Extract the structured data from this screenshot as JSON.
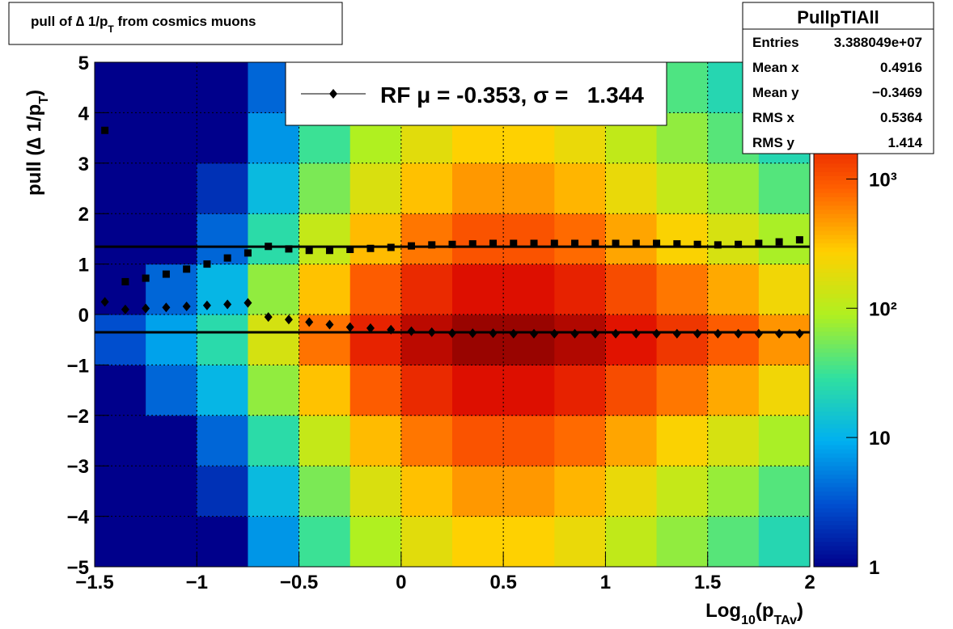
{
  "chart_data": {
    "type": "heatmap",
    "title": [
      "pull of ∆ 1/p",
      "T",
      " from cosmics muons"
    ],
    "x_label": [
      "Log",
      "10",
      "(p",
      "TAv",
      ")"
    ],
    "y_label": [
      "pull (∆ 1/p",
      "T",
      ")"
    ],
    "xlim": [
      -1.5,
      2
    ],
    "ylim": [
      -5,
      5
    ],
    "xticks": [
      {
        "value": -1.5,
        "label": "−1.5"
      },
      {
        "value": -1,
        "label": "−1"
      },
      {
        "value": -0.5,
        "label": "−0.5"
      },
      0,
      0.5,
      1,
      1.5,
      2
    ],
    "yticks": [
      {
        "value": -5,
        "label": "−5"
      },
      {
        "value": -4,
        "label": "−4"
      },
      {
        "value": -3,
        "label": "−3"
      },
      {
        "value": -2,
        "label": "−2"
      },
      {
        "value": -1,
        "label": "−1"
      },
      0,
      1,
      2,
      3,
      4,
      5
    ],
    "grid": true,
    "x_bins": [
      -1.5,
      -1.25,
      -1,
      -0.75,
      -0.5,
      -0.25,
      0,
      0.25,
      0.5,
      0.75,
      1,
      1.25,
      1.5,
      1.75,
      2
    ],
    "y_bins": [
      -5,
      -4,
      -3,
      -2,
      -1,
      0,
      1,
      2,
      3,
      4,
      5
    ],
    "z": [
      [
        1,
        1,
        1,
        7,
        32,
        90,
        180,
        270,
        270,
        203,
        113,
        68,
        41,
        23
      ],
      [
        1,
        1,
        2,
        12,
        56,
        160,
        320,
        480,
        480,
        360,
        200,
        120,
        72,
        40
      ],
      [
        1,
        1,
        4,
        26,
        119,
        340,
        680,
        1020,
        1020,
        765,
        425,
        255,
        153,
        85
      ],
      [
        1,
        4,
        11,
        68,
        315,
        900,
        1800,
        2700,
        2700,
        2025,
        1125,
        675,
        405,
        225
      ],
      [
        3,
        8,
        25,
        150,
        700,
        2000,
        4000,
        6000,
        6000,
        4500,
        2500,
        1500,
        900,
        500
      ],
      [
        1,
        4,
        11,
        68,
        315,
        900,
        1800,
        2700,
        2700,
        2025,
        1125,
        675,
        405,
        225
      ],
      [
        1,
        1,
        4,
        26,
        119,
        340,
        680,
        1020,
        1020,
        765,
        425,
        255,
        153,
        85
      ],
      [
        1,
        1,
        2,
        12,
        56,
        160,
        320,
        480,
        480,
        360,
        200,
        120,
        72,
        40
      ],
      [
        1,
        1,
        1,
        7,
        32,
        90,
        180,
        270,
        270,
        203,
        113,
        68,
        41,
        23
      ],
      [
        1,
        1,
        1,
        4,
        18,
        50,
        100,
        150,
        150,
        113,
        63,
        38,
        23,
        13
      ]
    ],
    "zlim": [
      1,
      8000
    ],
    "z_log": true,
    "zticks": [
      1,
      10,
      {
        "value": 100,
        "label": "10²"
      },
      {
        "value": 1000,
        "label": "10³"
      }
    ],
    "colorscale": [
      "#00008b",
      "#0050d0",
      "#00b0f0",
      "#30e0a0",
      "#b0f020",
      "#ffd000",
      "#ff6000",
      "#e01000",
      "#800000"
    ],
    "series": [
      {
        "marker": "square",
        "color": "#000000",
        "x": [
          -1.45,
          -1.35,
          -1.25,
          -1.15,
          -1.05,
          -0.95,
          -0.85,
          -0.75,
          -0.65,
          -0.55,
          -0.45,
          -0.35,
          -0.25,
          -0.15,
          -0.05,
          0.05,
          0.15,
          0.25,
          0.35,
          0.45,
          0.55,
          0.65,
          0.75,
          0.85,
          0.95,
          1.05,
          1.15,
          1.25,
          1.35,
          1.45,
          1.55,
          1.65,
          1.75,
          1.85,
          1.95
        ],
        "values": [
          3.65,
          0.65,
          0.72,
          0.8,
          0.9,
          1.0,
          1.12,
          1.22,
          1.35,
          1.3,
          1.27,
          1.27,
          1.29,
          1.31,
          1.33,
          1.36,
          1.38,
          1.39,
          1.4,
          1.41,
          1.41,
          1.41,
          1.41,
          1.41,
          1.41,
          1.41,
          1.41,
          1.41,
          1.4,
          1.39,
          1.38,
          1.39,
          1.41,
          1.44,
          1.48
        ]
      },
      {
        "marker": "diamond",
        "color": "#000000",
        "x": [
          -1.45,
          -1.35,
          -1.25,
          -1.15,
          -1.05,
          -0.95,
          -0.85,
          -0.75,
          -0.65,
          -0.55,
          -0.45,
          -0.35,
          -0.25,
          -0.15,
          -0.05,
          0.05,
          0.15,
          0.25,
          0.35,
          0.45,
          0.55,
          0.65,
          0.75,
          0.85,
          0.95,
          1.05,
          1.15,
          1.25,
          1.35,
          1.45,
          1.55,
          1.65,
          1.75,
          1.85,
          1.95
        ],
        "values": [
          0.25,
          0.1,
          0.12,
          0.14,
          0.16,
          0.18,
          0.2,
          0.23,
          -0.05,
          -0.1,
          -0.15,
          -0.2,
          -0.25,
          -0.27,
          -0.3,
          -0.33,
          -0.35,
          -0.37,
          -0.37,
          -0.37,
          -0.38,
          -0.38,
          -0.38,
          -0.38,
          -0.38,
          -0.38,
          -0.38,
          -0.38,
          -0.38,
          -0.38,
          -0.38,
          -0.38,
          -0.38,
          -0.38,
          -0.38
        ]
      }
    ],
    "fit": {
      "mu": -0.353,
      "sigma": 1.344
    },
    "legend": {
      "label": "RF μ = -0.353, σ =   1.344"
    },
    "stats": {
      "title": "PullpTIAll",
      "rows": [
        [
          "Entries",
          "3.388049e+07"
        ],
        [
          "Mean x",
          "0.4916"
        ],
        [
          "Mean y",
          "−0.3469"
        ],
        [
          "RMS x",
          "0.5364"
        ],
        [
          "RMS y",
          "1.414"
        ]
      ]
    }
  }
}
